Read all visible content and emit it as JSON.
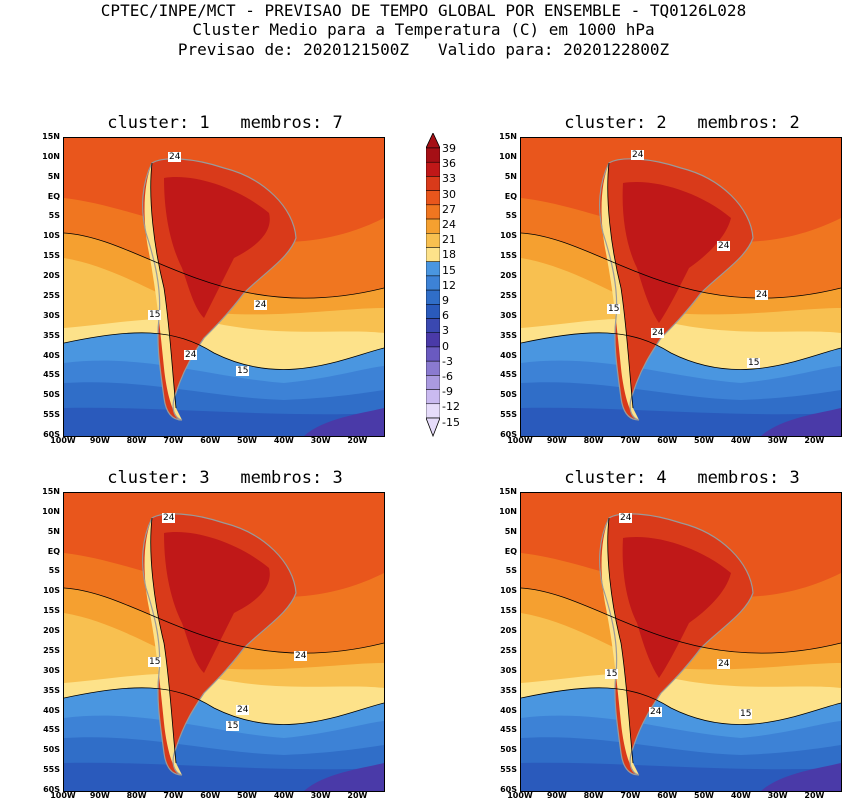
{
  "header": {
    "line1": "CPTEC/INPE/MCT - PREVISAO DE TEMPO GLOBAL POR ENSEMBLE - TQ0126L028",
    "line2": "Cluster Medio para a Temperatura (C) em 1000 hPa",
    "line3": "Previsao de: 2020121500Z   Valido para: 2020122800Z"
  },
  "lat_labels": [
    "15N",
    "10N",
    "5N",
    "EQ",
    "5S",
    "10S",
    "15S",
    "20S",
    "25S",
    "30S",
    "35S",
    "40S",
    "45S",
    "50S",
    "55S",
    "60S"
  ],
  "lon_labels": [
    "100W",
    "90W",
    "80W",
    "70W",
    "60W",
    "50W",
    "40W",
    "30W",
    "20W"
  ],
  "panels": [
    {
      "title": "cluster: 1   membros: 7",
      "labels": [
        "24",
        "24",
        "15",
        "24",
        "15"
      ]
    },
    {
      "title": "cluster: 2   membros: 2",
      "labels": [
        "24",
        "24",
        "24",
        "15",
        "24",
        "15"
      ]
    },
    {
      "title": "cluster: 3   membros: 3",
      "labels": [
        "24",
        "24",
        "15",
        "24",
        "15"
      ]
    },
    {
      "title": "cluster: 4   membros: 3",
      "labels": [
        "24",
        "24",
        "15",
        "24",
        "15"
      ]
    }
  ],
  "colorbar": {
    "labels": [
      "39",
      "36",
      "33",
      "30",
      "27",
      "24",
      "21",
      "18",
      "15",
      "12",
      "9",
      "6",
      "3",
      "0",
      "-3",
      "-6",
      "-9",
      "-12",
      "-15"
    ],
    "colors": [
      "#a50f15",
      "#c01818",
      "#d93a1a",
      "#e9561c",
      "#f07620",
      "#f5a030",
      "#f8c050",
      "#fde28a",
      "#4a96e0",
      "#3d82d6",
      "#306ec8",
      "#2a5abc",
      "#3a48b0",
      "#4a3aa8",
      "#6a5ac0",
      "#8a7ad0",
      "#aa9ae0",
      "#cabaf0",
      "#e6dcfa"
    ]
  },
  "colors": {
    "land_outline": "#9a9a9a",
    "contour": "#000000"
  }
}
